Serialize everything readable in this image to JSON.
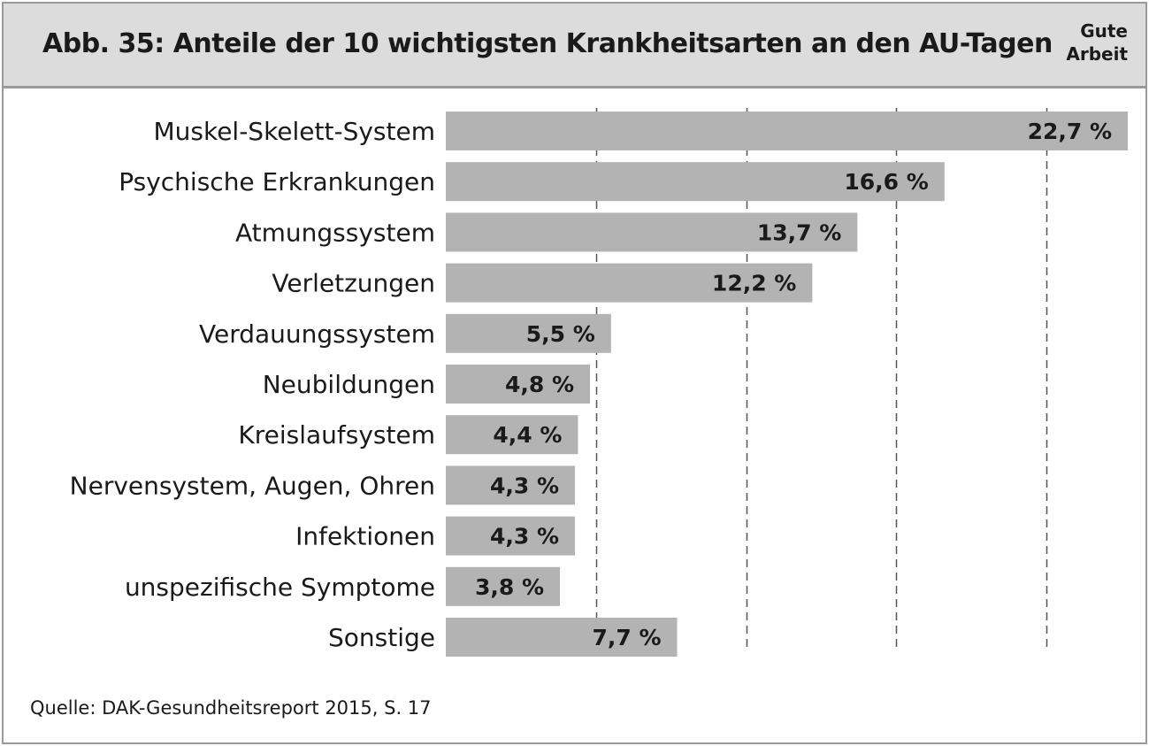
{
  "header": {
    "title": "Abb. 35: Anteile der 10 wichtigsten Krankheitsarten an den AU-Tagen",
    "brand_line1": "Gute",
    "brand_line2": "Arbeit"
  },
  "footer": {
    "source": "Quelle: DAK-Gesundheitsreport 2015, S. 17"
  },
  "colors": {
    "bar": "#b3b3b3",
    "header_bg": "#dcdcdc",
    "grid": "#555555"
  },
  "chart_data": {
    "type": "bar",
    "orientation": "horizontal",
    "title": "Abb. 35: Anteile der 10 wichtigsten Krankheitsarten an den AU-Tagen",
    "categories": [
      "Muskel-Skelett-System",
      "Psychische Erkrankungen",
      "Atmungssystem",
      "Verletzungen",
      "Verdauungssystem",
      "Neubildungen",
      "Kreislaufsystem",
      "Nervensystem, Augen, Ohren",
      "Infektionen",
      "unspezifische Symptome",
      "Sonstige"
    ],
    "values": [
      22.7,
      16.6,
      13.7,
      12.2,
      5.5,
      4.8,
      4.4,
      4.3,
      4.3,
      3.8,
      7.7
    ],
    "value_labels": [
      "22,7 %",
      "16,6 %",
      "13,7 %",
      "12,2 %",
      "5,5 %",
      "4,8 %",
      "4,4 %",
      "4,3 %",
      "4,3 %",
      "3,8 %",
      "7,7 %"
    ],
    "xlim": [
      0,
      22.7
    ],
    "gridlines": [
      5,
      10,
      15,
      20
    ],
    "grid": true,
    "xlabel": "",
    "ylabel": ""
  }
}
